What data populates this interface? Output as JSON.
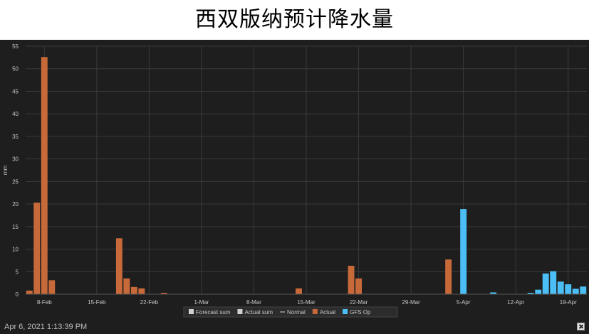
{
  "page": {
    "title": "西双版纳预计降水量"
  },
  "footer": {
    "timestamp": "Apr 6, 2021 1:13:39 PM",
    "export_icon": "close-x-icon"
  },
  "colors": {
    "background": "#1e1e1e",
    "grid": "#3a3a3a",
    "actual": "#c8693a",
    "gfs": "#4bbef5",
    "text": "#c8c8c8",
    "legend_bg": "#2c2c2c"
  },
  "chart_data": {
    "type": "bar",
    "title": "",
    "xlabel": "",
    "ylabel": "mm",
    "ylim": [
      0,
      55
    ],
    "yticks": [
      "0",
      "5",
      "10",
      "15",
      "20",
      "25",
      "30",
      "35",
      "40",
      "45",
      "50",
      "55"
    ],
    "xticks": [
      "8-Feb",
      "15-Feb",
      "22-Feb",
      "1-Mar",
      "8-Mar",
      "15-Mar",
      "22-Mar",
      "29-Mar",
      "5-Apr",
      "12-Apr",
      "19-Apr"
    ],
    "grid": true,
    "legend_position": "bottom",
    "legend": [
      {
        "label": "Forecast sum",
        "symbol": "box",
        "color": "#d0d0d0"
      },
      {
        "label": "Actual sum",
        "symbol": "box",
        "color": "#d0d0d0"
      },
      {
        "label": "Normal",
        "symbol": "line",
        "color": "#d0d0d0"
      },
      {
        "label": "Actual",
        "symbol": "box",
        "color": "#c8693a"
      },
      {
        "label": "GFS Op",
        "symbol": "box",
        "color": "#4bbef5"
      }
    ],
    "series": [
      {
        "name": "Actual",
        "points": [
          {
            "date": "6-Feb",
            "value": 0.8
          },
          {
            "date": "7-Feb",
            "value": 20.3
          },
          {
            "date": "8-Feb",
            "value": 52.6
          },
          {
            "date": "9-Feb",
            "value": 3.1
          },
          {
            "date": "18-Feb",
            "value": 12.4
          },
          {
            "date": "19-Feb",
            "value": 3.5
          },
          {
            "date": "20-Feb",
            "value": 1.6
          },
          {
            "date": "21-Feb",
            "value": 1.3
          },
          {
            "date": "24-Feb",
            "value": 0.3
          },
          {
            "date": "14-Mar",
            "value": 1.3
          },
          {
            "date": "21-Mar",
            "value": 6.3
          },
          {
            "date": "22-Mar",
            "value": 3.5
          },
          {
            "date": "3-Apr",
            "value": 7.7
          }
        ]
      },
      {
        "name": "GFS Op",
        "points": [
          {
            "date": "5-Apr",
            "value": 18.9
          },
          {
            "date": "9-Apr",
            "value": 0.4
          },
          {
            "date": "14-Apr",
            "value": 0.3
          },
          {
            "date": "15-Apr",
            "value": 1.0
          },
          {
            "date": "16-Apr",
            "value": 4.6
          },
          {
            "date": "17-Apr",
            "value": 5.1
          },
          {
            "date": "18-Apr",
            "value": 2.8
          },
          {
            "date": "19-Apr",
            "value": 2.2
          },
          {
            "date": "20-Apr",
            "value": 1.2
          },
          {
            "date": "21-Apr",
            "value": 1.7
          }
        ]
      }
    ]
  }
}
